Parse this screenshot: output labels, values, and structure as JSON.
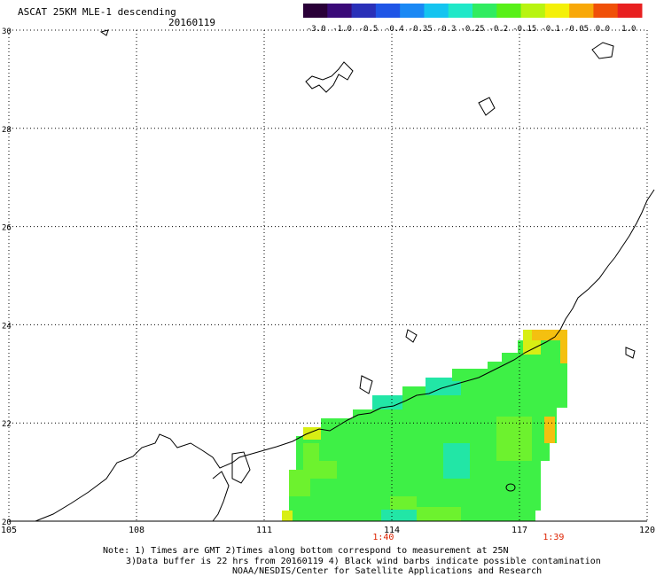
{
  "title": "ASCAT 25KM MLE-1 descending",
  "date": "20160119",
  "colorbar": {
    "labels": [
      "-3.0",
      "-1.0",
      "-0.5",
      "-0.4",
      "-0.35",
      "-0.3",
      "-0.25",
      "-0.2",
      "-0.15",
      "-0.1",
      "-0.05",
      "0.0",
      "1.0"
    ],
    "colors": [
      "#2a0038",
      "#3a0a78",
      "#2a30b8",
      "#1f55e6",
      "#1a88f4",
      "#14c4f0",
      "#20e8c8",
      "#30ec60",
      "#58f018",
      "#b8f410",
      "#f4f008",
      "#f8a808",
      "#f05008",
      "#e82020"
    ]
  },
  "axes": {
    "x_ticks": [
      "105",
      "108",
      "111",
      "114",
      "117",
      "120"
    ],
    "y_ticks": [
      "30",
      "28",
      "26",
      "24",
      "22",
      "20"
    ],
    "x_range": [
      105,
      120
    ],
    "y_range": [
      20,
      30
    ]
  },
  "pass_times": [
    {
      "label": "1:40",
      "lon": 113.8
    },
    {
      "label": "1:39",
      "lon": 117.8
    }
  ],
  "colors": {
    "swath_main": "#3ef046",
    "swath_alt": "#6df22e",
    "swath_cyan": "#22e6a6",
    "swath_yellow": "#d8ee14",
    "swath_orange": "#f4c010",
    "coast": "#000000",
    "grid": "#000000",
    "time_label": "#dd2200"
  },
  "notes": [
    "Note: 1) Times are GMT 2)Times along bottom correspond to measurement at 25N",
    "3)Data buffer is 22 hrs from 20160119 4) Black wind barbs indicate possible contamination",
    "NOAA/NESDIS/Center for Satellite Applications and Research"
  ]
}
